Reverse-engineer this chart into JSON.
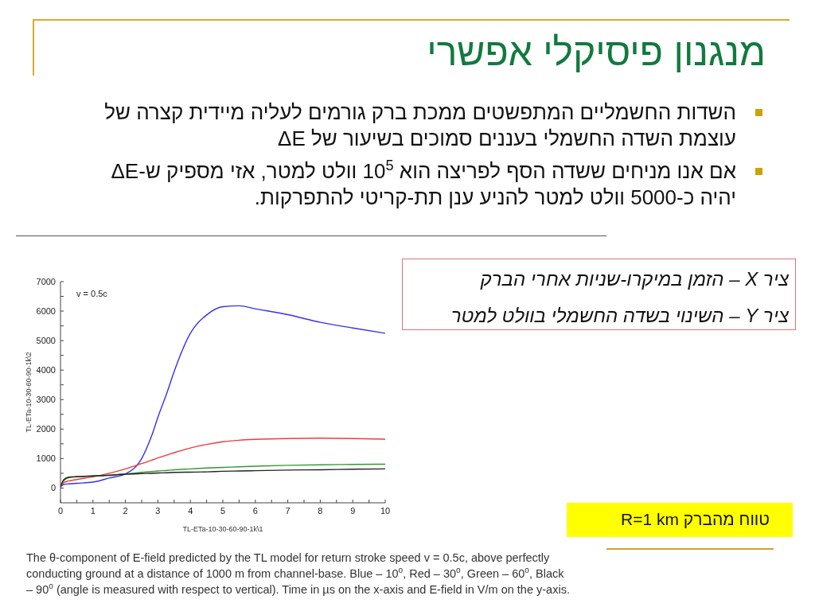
{
  "chart_data": {
    "type": "line",
    "title": "מנגנון פיסיקלי אפשרי",
    "annotations": [
      "השדות החשמליים המתפשטים ממכת ברק גורמים לעליה מיידית קצרה של עוצמת השדה החשמלי בעננים סמוכים בשיעור של ΔE",
      "אם אנו מניחים ששדה הסף לפריצה הוא 10$^{5}$ וולט למטר, אזי מספיק ש-ΔE יהיה כ-5000 וולט למטר להניע ענן תת-קריטי להתפרקות.",
      "ציר X – הזמן במיקרו-שניות אחרי הברק",
      "ציר Y – השינוי בשדה החשמלי בוולט למטר",
      "v = 0.5c",
      "טווח מהברק R=1 km",
      "The θ-component of E-field predicted by the TL model for return stroke speed v = 0.5c, above perfectly conducting ground at a distance of 1000 m from channel-base. Blue – 10$^{o}$, Red – 30$^{o}$, Green – 60$^{o}$,  Black – 90$^{o}$ (angle is measured with respect to vertical).  Time in µs on the x-axis and E-field in V/m on the y-axis."
    ],
    "xlabel": "TL-ETa-10-30-60-90-1k\\1",
    "ylabel": "TL-ETa-10-30-60-90-1k\\2",
    "x": [
      0,
      0.1,
      0.25,
      0.5,
      1,
      1.5,
      2,
      2.5,
      2.8,
      3,
      3.3,
      3.5,
      4,
      4.5,
      5,
      5.5,
      6,
      7,
      8,
      9,
      10
    ],
    "series": [
      {
        "color": "#3333ee",
        "values": [
          50,
          120,
          140,
          160,
          200,
          340,
          480,
          1000,
          1750,
          2400,
          3300,
          3950,
          5250,
          5870,
          6150,
          6180,
          6080,
          5880,
          5620,
          5430,
          5250
        ]
      },
      {
        "color": "#ee3b3b",
        "values": [
          50,
          180,
          240,
          290,
          380,
          500,
          650,
          830,
          940,
          1020,
          1130,
          1200,
          1360,
          1480,
          1570,
          1620,
          1650,
          1680,
          1690,
          1680,
          1660
        ]
      },
      {
        "color": "#339933",
        "values": [
          60,
          250,
          350,
          380,
          410,
          440,
          480,
          530,
          560,
          580,
          600,
          620,
          650,
          680,
          700,
          720,
          740,
          770,
          790,
          800,
          810
        ]
      },
      {
        "color": "#222222",
        "values": [
          40,
          280,
          370,
          390,
          410,
          430,
          470,
          490,
          500,
          510,
          520,
          530,
          540,
          550,
          570,
          580,
          590,
          610,
          620,
          640,
          650
        ]
      }
    ],
    "xlim": [
      0,
      10
    ],
    "ylim": [
      -500,
      7000
    ],
    "xticks": [
      0,
      {
        "value": 0.5,
        "label": null
      },
      1,
      {
        "value": 1.5,
        "label": null
      },
      2,
      {
        "value": 2.5,
        "label": null
      },
      3,
      {
        "value": 3.5,
        "label": null
      },
      4,
      {
        "value": 4.5,
        "label": null
      },
      5,
      {
        "value": 5.5,
        "label": null
      },
      6,
      {
        "value": 6.5,
        "label": null
      },
      7,
      {
        "value": 7.5,
        "label": null
      },
      8,
      {
        "value": 8.5,
        "label": null
      },
      9,
      {
        "value": 9.5,
        "label": null
      },
      10
    ],
    "yticks": [
      0,
      {
        "value": 500,
        "label": null
      },
      1000,
      {
        "value": 1500,
        "label": null
      },
      2000,
      {
        "value": 2500,
        "label": null
      },
      3000,
      {
        "value": 3500,
        "label": null
      },
      4000,
      {
        "value": 4500,
        "label": null
      },
      5000,
      {
        "value": 5500,
        "label": null
      },
      6000,
      {
        "value": 6500,
        "label": null
      },
      7000
    ]
  }
}
